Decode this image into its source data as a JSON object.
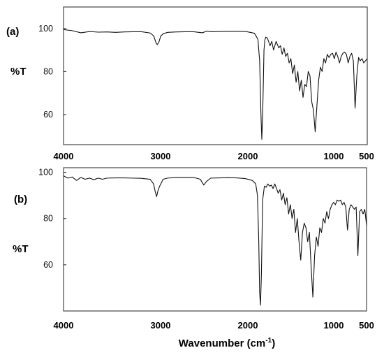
{
  "chart_data": [
    {
      "type": "line",
      "panel_label": "(a)",
      "ylabel": "%T",
      "xlim": [
        4000,
        500
      ],
      "ylim": [
        46,
        110
      ],
      "y_ticks": [
        "100",
        "80",
        "60"
      ],
      "x_ticks": [
        "4000",
        "3000",
        "2000",
        "1000",
        "500"
      ],
      "grid": false,
      "color": "#111111",
      "series": [
        {
          "x": [
            4000,
            3900,
            3800,
            3700,
            3600,
            3500,
            3400,
            3300,
            3200,
            3100,
            3000,
            2960,
            2935,
            2920,
            2900,
            2880,
            2850,
            2800,
            2700,
            2600,
            2500,
            2400,
            2350,
            2300,
            2200,
            2100,
            2000,
            1900,
            1800,
            1760,
            1740,
            1725,
            1715,
            1705,
            1690,
            1680,
            1670,
            1650,
            1620,
            1600,
            1580,
            1550,
            1520,
            1500,
            1480,
            1460,
            1440,
            1420,
            1400,
            1380,
            1360,
            1340,
            1320,
            1300,
            1280,
            1260,
            1240,
            1220,
            1200,
            1180,
            1160,
            1140,
            1120,
            1100,
            1080,
            1060,
            1040,
            1020,
            1000,
            980,
            960,
            940,
            920,
            900,
            880,
            860,
            840,
            820,
            800,
            780,
            760,
            740,
            720,
            700,
            680,
            660,
            640,
            620,
            600,
            580,
            560,
            540,
            520,
            500
          ],
          "y": [
            99.5,
            99.0,
            98.0,
            98.6,
            98.3,
            98.4,
            98.2,
            98.4,
            98.5,
            98.5,
            97.9,
            96.5,
            93.4,
            92.5,
            93.8,
            96.5,
            97.6,
            98.2,
            98.4,
            98.5,
            98.5,
            98.0,
            98.8,
            98.5,
            98.6,
            98.7,
            98.7,
            98.6,
            97.8,
            95.0,
            85.0,
            60.0,
            48.5,
            60.0,
            90.0,
            94.5,
            96.0,
            95.5,
            92.0,
            94.0,
            90.0,
            94.0,
            91.0,
            92.0,
            88.0,
            91.0,
            87.0,
            88.5,
            84.0,
            86.0,
            79.0,
            83.0,
            75.0,
            80.0,
            71.0,
            76.0,
            68.0,
            74.0,
            73.0,
            80.0,
            78.0,
            66.0,
            62.0,
            52.0,
            64.0,
            76.0,
            82.0,
            80.0,
            86.0,
            84.0,
            88.0,
            86.5,
            88.0,
            88.5,
            86.0,
            89.0,
            87.0,
            84.0,
            87.0,
            88.5,
            89.0,
            88.0,
            84.0,
            87.0,
            88.5,
            85.0,
            63.0,
            78.0,
            86.5,
            85.0,
            86.0,
            84.0,
            85.0,
            86.0
          ]
        }
      ]
    },
    {
      "type": "line",
      "panel_label": "(b)",
      "ylabel": "%T",
      "xlabel": "Wavenumber (cm-1)",
      "xlim": [
        4000,
        500
      ],
      "ylim": [
        40,
        102
      ],
      "y_ticks": [
        "100",
        "80",
        "60"
      ],
      "x_ticks": [
        "4000",
        "3000",
        "2000",
        "1000",
        "500"
      ],
      "grid": false,
      "color": "#111111",
      "series": [
        {
          "x": [
            4000,
            3950,
            3900,
            3850,
            3800,
            3750,
            3700,
            3650,
            3600,
            3550,
            3500,
            3400,
            3300,
            3200,
            3100,
            3000,
            2960,
            2940,
            2925,
            2910,
            2890,
            2870,
            2850,
            2800,
            2700,
            2600,
            2500,
            2420,
            2380,
            2350,
            2300,
            2200,
            2100,
            2000,
            1900,
            1820,
            1780,
            1760,
            1745,
            1735,
            1725,
            1715,
            1700,
            1680,
            1660,
            1640,
            1620,
            1600,
            1580,
            1560,
            1540,
            1520,
            1500,
            1480,
            1460,
            1440,
            1420,
            1400,
            1380,
            1360,
            1340,
            1320,
            1300,
            1280,
            1260,
            1240,
            1220,
            1200,
            1180,
            1160,
            1140,
            1120,
            1100,
            1080,
            1060,
            1040,
            1020,
            1000,
            980,
            960,
            940,
            920,
            900,
            880,
            860,
            840,
            820,
            800,
            780,
            760,
            740,
            720,
            700,
            680,
            660,
            640,
            620,
            600,
            580,
            560,
            540,
            520,
            500
          ],
          "y": [
            98.5,
            97.5,
            98.0,
            96.5,
            97.8,
            97.0,
            97.5,
            96.8,
            97.5,
            97.0,
            97.5,
            97.6,
            97.6,
            97.5,
            97.4,
            97.0,
            95.0,
            91.5,
            89.5,
            92.0,
            94.0,
            95.5,
            97.0,
            97.5,
            97.8,
            97.8,
            97.8,
            97.0,
            94.5,
            96.0,
            97.5,
            97.6,
            97.7,
            97.6,
            97.3,
            96.5,
            95.0,
            90.0,
            70.0,
            48.0,
            42.5,
            55.0,
            88.0,
            94.0,
            93.5,
            95.0,
            94.0,
            94.5,
            93.0,
            95.0,
            93.0,
            91.0,
            92.5,
            88.0,
            91.0,
            86.0,
            89.0,
            82.0,
            86.0,
            80.0,
            84.0,
            74.0,
            80.0,
            70.0,
            62.0,
            74.0,
            78.0,
            76.0,
            70.0,
            74.0,
            59.0,
            46.0,
            64.0,
            72.0,
            68.0,
            76.0,
            74.0,
            80.0,
            78.0,
            83.0,
            80.0,
            84.0,
            86.0,
            87.0,
            86.0,
            88.0,
            87.5,
            88.0,
            86.0,
            87.0,
            85.0,
            75.0,
            84.0,
            86.0,
            85.0,
            84.0,
            85.0,
            64.0,
            83.0,
            84.0,
            82.0,
            84.0,
            77.0
          ]
        }
      ]
    }
  ]
}
